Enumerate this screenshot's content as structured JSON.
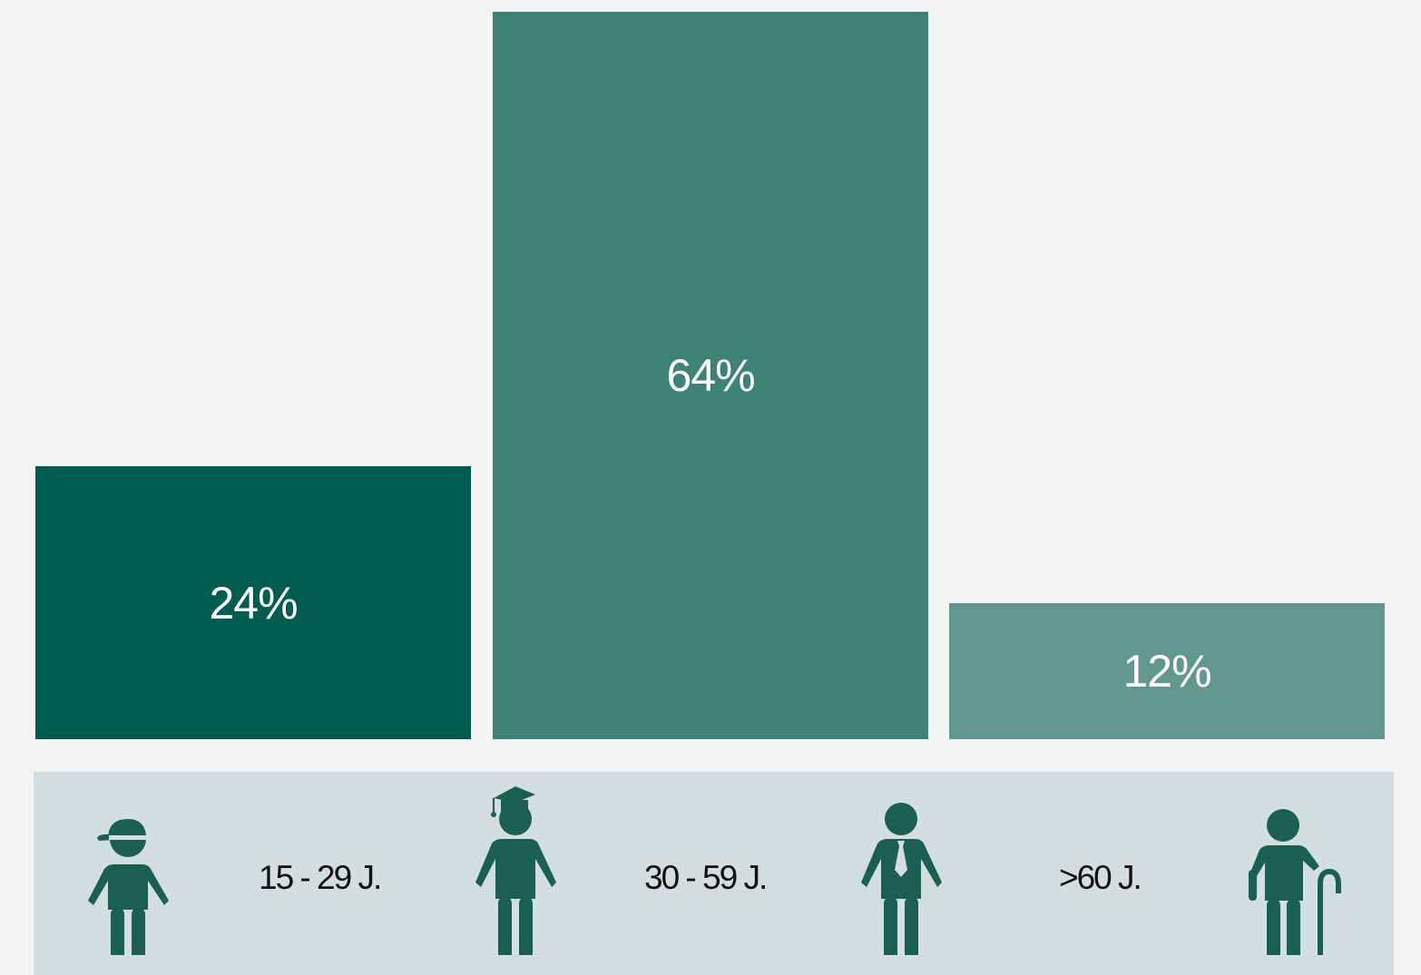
{
  "chart_data": {
    "type": "bar",
    "categories": [
      "15 - 29 J.",
      "30 - 59 J.",
      ">60 J."
    ],
    "values": [
      24,
      64,
      12
    ],
    "value_labels": [
      "24%",
      "64%",
      "12%"
    ],
    "colors": [
      "#005c4f",
      "#3d8177",
      "#61978e"
    ],
    "ylim": [
      0,
      64
    ],
    "grid": false,
    "legend": "none"
  },
  "icons": [
    "person-with-cap-icon",
    "graduate-person-icon",
    "person-with-tie-icon",
    "elderly-person-with-cane-icon"
  ],
  "theme": {
    "icon_color": "#1b5e52",
    "band_color": "#d3dfdf",
    "background": "#f4f4f4"
  }
}
